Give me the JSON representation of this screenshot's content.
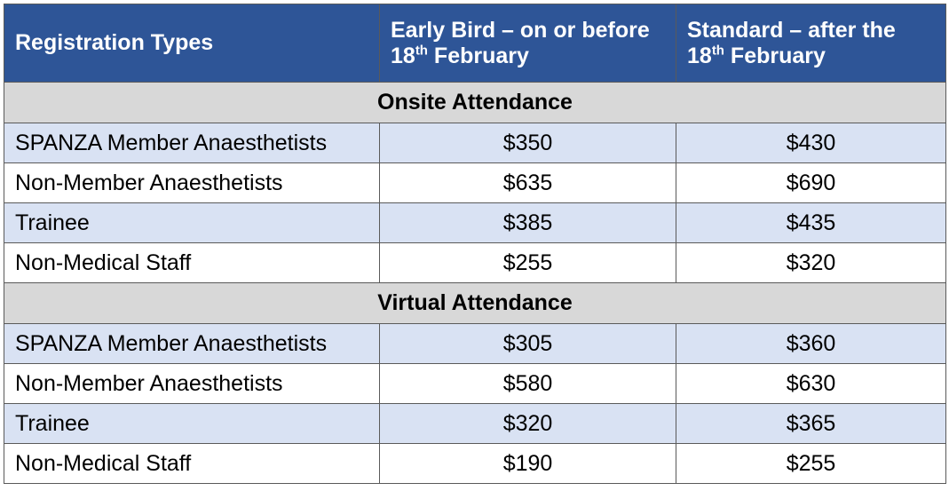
{
  "header": {
    "col1": "Registration Types",
    "col2_pre": "Early Bird – on or before",
    "col2_day": "18",
    "col2_sup": "th",
    "col2_month": " February",
    "col3_pre": "Standard – after the",
    "col3_day": "18",
    "col3_sup": "th",
    "col3_month": " February"
  },
  "sections": [
    {
      "title": "Onsite Attendance",
      "rows": [
        {
          "type": "SPANZA Member Anaesthetists",
          "early": "$350",
          "standard": "$430"
        },
        {
          "type": "Non-Member Anaesthetists",
          "early": "$635",
          "standard": "$690"
        },
        {
          "type": "Trainee",
          "early": "$385",
          "standard": "$435"
        },
        {
          "type": "Non-Medical Staff",
          "early": "$255",
          "standard": "$320"
        }
      ]
    },
    {
      "title": "Virtual Attendance",
      "rows": [
        {
          "type": "SPANZA Member Anaesthetists",
          "early": "$305",
          "standard": "$360"
        },
        {
          "type": "Non-Member Anaesthetists",
          "early": "$580",
          "standard": "$630"
        },
        {
          "type": "Trainee",
          "early": "$320",
          "standard": "$365"
        },
        {
          "type": "Non-Medical Staff",
          "early": "$190",
          "standard": "$255"
        }
      ]
    }
  ],
  "colors": {
    "header_bg": "#2e5597",
    "section_bg": "#d8d8d8",
    "row_shade": "#d9e2f3"
  }
}
